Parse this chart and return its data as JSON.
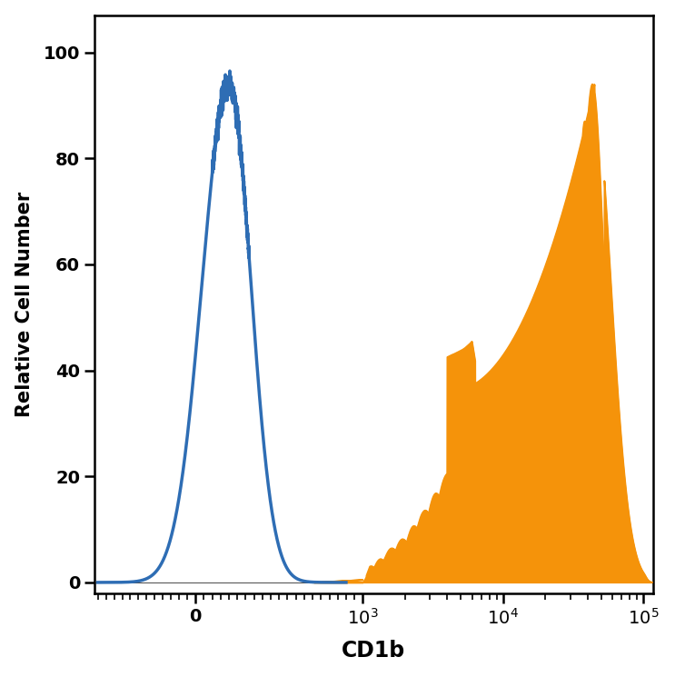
{
  "title": "",
  "xlabel": "CD1b",
  "ylabel": "Relative Cell Number",
  "ylabel_fontsize": 15,
  "xlabel_fontsize": 17,
  "ylim": [
    -2,
    107
  ],
  "blue_color": "#2e6db4",
  "orange_color": "#f5930a",
  "blue_linewidth": 2.5,
  "orange_linewidth": 1.0,
  "tick_labelsize": 14,
  "background_color": "#ffffff"
}
